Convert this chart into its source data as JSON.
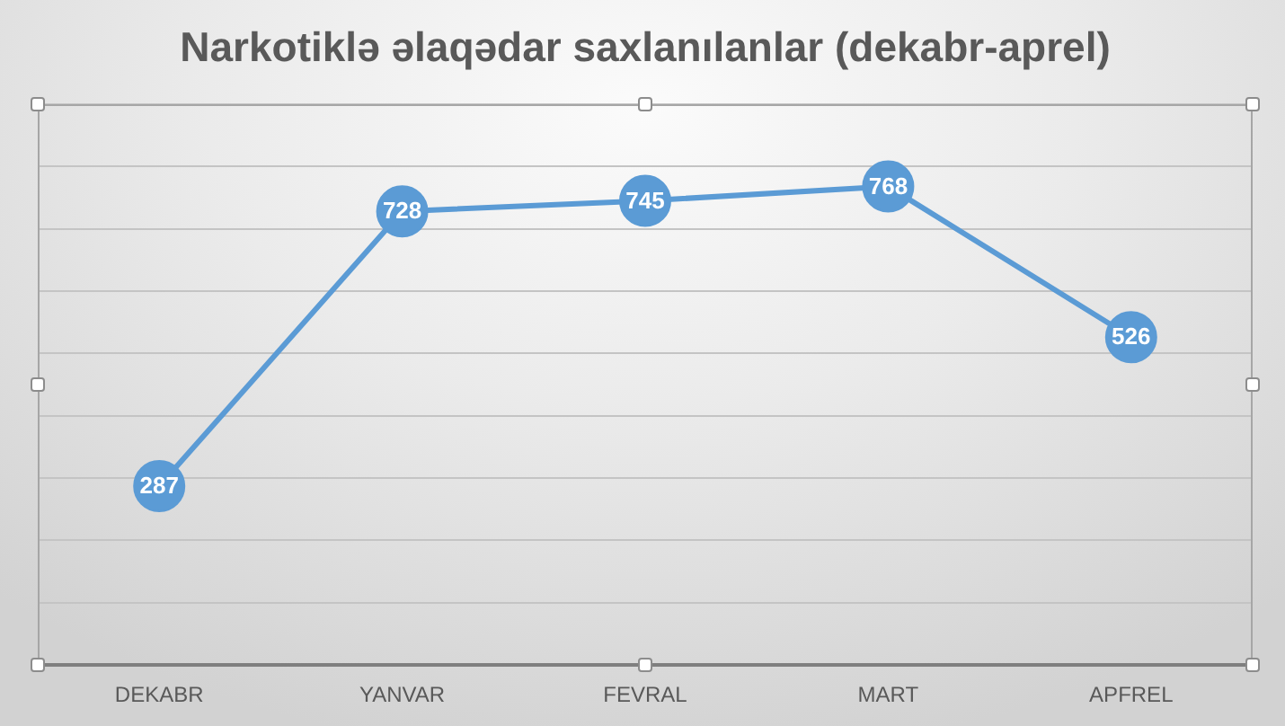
{
  "chart_data": {
    "type": "line",
    "title": "Narkotiklə əlaqədar saxlanılanlar (dekabr-aprel)",
    "categories": [
      "DEKABR",
      "YANVAR",
      "FEVRAL",
      "MART",
      "APFREL"
    ],
    "values": [
      287,
      728,
      745,
      768,
      526
    ],
    "color": "#5b9bd5",
    "ylim": [
      0,
      900
    ],
    "yticks": [
      {
        "value": 0,
        "label": null
      },
      {
        "value": 100,
        "label": null
      },
      {
        "value": 200,
        "label": null
      },
      {
        "value": 300,
        "label": null
      },
      {
        "value": 400,
        "label": null
      },
      {
        "value": 500,
        "label": null
      },
      {
        "value": 600,
        "label": null
      },
      {
        "value": 700,
        "label": null
      },
      {
        "value": 800,
        "label": null
      },
      {
        "value": 900,
        "label": null
      }
    ],
    "grid": "y",
    "tick_labels": "x",
    "data_labels": true,
    "marker": "circle",
    "line_style": "solid"
  }
}
